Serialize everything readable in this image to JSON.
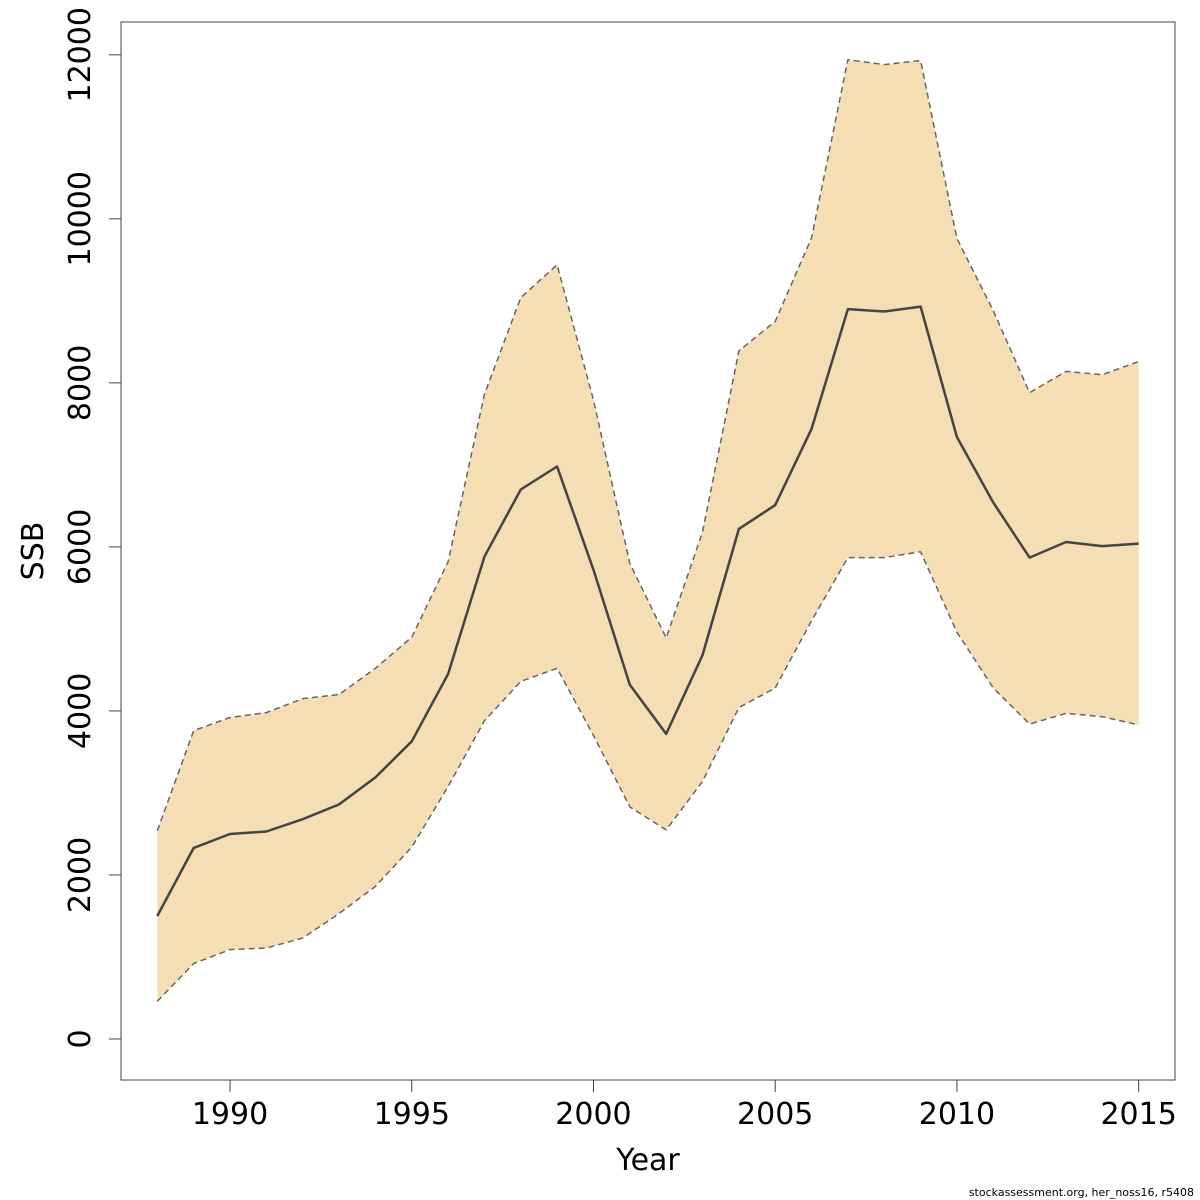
{
  "chart_data": {
    "type": "area",
    "title": "",
    "xlabel": "Year",
    "ylabel": "SSB",
    "xlim": [
      1987.0,
      2016.0
    ],
    "ylim": [
      -500,
      12400
    ],
    "x_ticks": [
      1990,
      1995,
      2000,
      2005,
      2010,
      2015
    ],
    "y_ticks": [
      0,
      2000,
      4000,
      6000,
      8000,
      10000,
      12000
    ],
    "grid": false,
    "legend": "none",
    "x": [
      1988,
      1989,
      1990,
      1991,
      1992,
      1993,
      1994,
      1995,
      1996,
      1997,
      1998,
      1999,
      2000,
      2001,
      2002,
      2003,
      2004,
      2005,
      2006,
      2007,
      2008,
      2009,
      2010,
      2011,
      2012,
      2013,
      2014,
      2015
    ],
    "series": [
      {
        "values": [
          1500,
          2330,
          2500,
          2530,
          2680,
          2860,
          3190,
          3630,
          4450,
          5880,
          6700,
          6980,
          5720,
          4320,
          3720,
          4680,
          6220,
          6510,
          7440,
          8900,
          8870,
          8930,
          7340,
          6540,
          5870,
          6060,
          6010,
          6040
        ],
        "color": "#444444"
      },
      {
        "values": [
          2540,
          3760,
          3920,
          3980,
          4150,
          4200,
          4520,
          4900,
          5820,
          7860,
          9040,
          9440,
          7790,
          5800,
          4890,
          6180,
          8390,
          8750,
          9770,
          11940,
          11880,
          11930,
          9760,
          8880,
          7880,
          8140,
          8100,
          8260
        ],
        "color": "#666666"
      },
      {
        "values": [
          460,
          920,
          1090,
          1110,
          1230,
          1530,
          1860,
          2340,
          3080,
          3880,
          4360,
          4520,
          3700,
          2830,
          2550,
          3140,
          4040,
          4280,
          5100,
          5870,
          5870,
          5940,
          4960,
          4280,
          3840,
          3970,
          3930,
          3830
        ],
        "color": "#666666"
      }
    ],
    "band_color": "#f5deb3"
  },
  "footnote": "stockassessment.org, her_noss16, r5408"
}
